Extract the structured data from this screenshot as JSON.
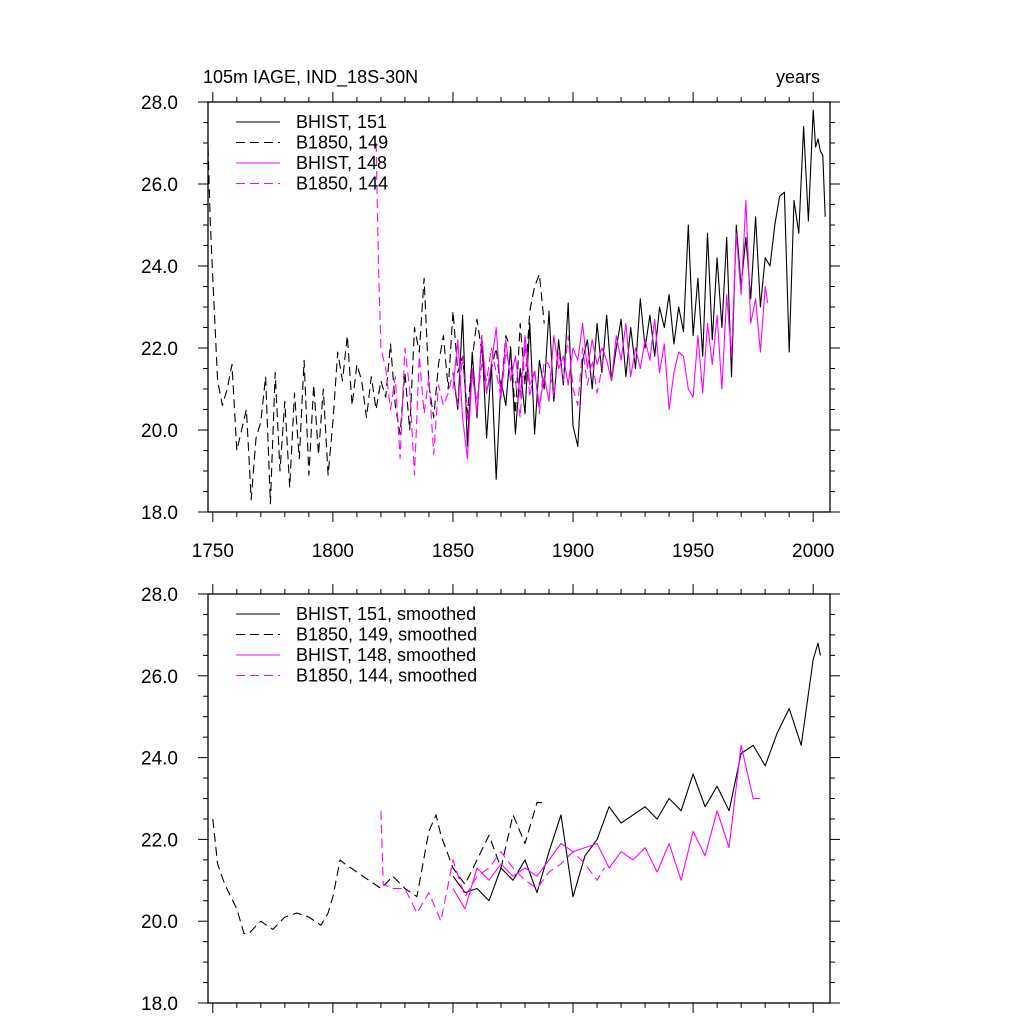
{
  "figure": {
    "title_left": "105m IAGE, IND_18S-30N",
    "title_right": "years"
  },
  "colors": {
    "black": "#000000",
    "magenta": "#ff00ff"
  },
  "chart_data": [
    {
      "type": "line",
      "title": "105m IAGE, IND_18S-30N",
      "subtitle_right": "years",
      "xlabel": "",
      "ylabel": "",
      "xlim": [
        1748,
        2007
      ],
      "ylim": [
        18.0,
        28.0
      ],
      "xticks": [
        1750,
        1800,
        1850,
        1900,
        1950,
        2000
      ],
      "yticks": [
        18.0,
        20.0,
        22.0,
        24.0,
        26.0,
        28.0
      ],
      "ytick_labels": [
        "18.0",
        "20.0",
        "22.0",
        "24.0",
        "26.0",
        "28.0"
      ],
      "legend_loc": "top-left",
      "series": [
        {
          "name": "BHIST, 151",
          "color": "#000000",
          "style": "solid",
          "x": [
            1850,
            1852,
            1854,
            1856,
            1858,
            1860,
            1862,
            1864,
            1866,
            1868,
            1870,
            1872,
            1874,
            1876,
            1878,
            1880,
            1882,
            1884,
            1886,
            1888,
            1890,
            1892,
            1894,
            1896,
            1898,
            1900,
            1902,
            1904,
            1906,
            1908,
            1910,
            1912,
            1914,
            1916,
            1918,
            1920,
            1922,
            1924,
            1926,
            1928,
            1930,
            1932,
            1934,
            1936,
            1938,
            1940,
            1942,
            1944,
            1946,
            1948,
            1950,
            1952,
            1954,
            1956,
            1958,
            1960,
            1962,
            1964,
            1966,
            1968,
            1970,
            1972,
            1974,
            1976,
            1978,
            1980,
            1982,
            1984,
            1986,
            1988,
            1990,
            1992,
            1994,
            1996,
            1998,
            2000,
            2001,
            2002,
            2003,
            2004,
            2005
          ],
          "values": [
            21.4,
            20.5,
            22.8,
            19.6,
            21.9,
            20.3,
            22.3,
            19.8,
            21.6,
            18.8,
            21.2,
            20.6,
            22.0,
            19.9,
            21.5,
            20.4,
            22.6,
            19.9,
            21.7,
            21.0,
            22.9,
            20.7,
            22.2,
            21.1,
            23.1,
            20.1,
            19.6,
            21.7,
            22.2,
            21.0,
            22.6,
            21.4,
            22.8,
            21.2,
            22.0,
            22.7,
            21.3,
            22.5,
            21.5,
            23.2,
            22.0,
            22.8,
            21.8,
            23.0,
            22.5,
            23.3,
            22.1,
            23.0,
            22.4,
            25.0,
            22.3,
            23.7,
            21.8,
            24.8,
            22.2,
            24.2,
            22.5,
            24.7,
            21.3,
            25.0,
            23.5,
            24.7,
            23.2,
            25.2,
            23.0,
            24.2,
            24.0,
            25.0,
            25.7,
            25.8,
            21.9,
            25.6,
            24.8,
            27.4,
            25.1,
            27.8,
            26.9,
            27.1,
            26.8,
            26.7,
            25.2
          ]
        },
        {
          "name": "B1850, 149",
          "color": "#000000",
          "style": "dashed",
          "x": [
            1748,
            1749,
            1750,
            1752,
            1754,
            1756,
            1758,
            1760,
            1762,
            1764,
            1766,
            1768,
            1770,
            1772,
            1774,
            1776,
            1778,
            1780,
            1782,
            1784,
            1786,
            1788,
            1790,
            1792,
            1794,
            1796,
            1798,
            1800,
            1802,
            1804,
            1806,
            1808,
            1810,
            1812,
            1814,
            1816,
            1818,
            1820,
            1822,
            1824,
            1826,
            1828,
            1830,
            1832,
            1834,
            1836,
            1838,
            1840,
            1842,
            1844,
            1846,
            1848,
            1850,
            1852,
            1854,
            1856,
            1858,
            1860,
            1862,
            1864,
            1866,
            1868,
            1870,
            1872,
            1874,
            1876,
            1878,
            1880,
            1882,
            1884,
            1886,
            1888
          ],
          "values": [
            26.9,
            25.0,
            23.7,
            21.2,
            20.6,
            21.0,
            21.6,
            19.5,
            20.0,
            20.5,
            18.3,
            19.8,
            20.2,
            21.3,
            18.2,
            21.4,
            19.0,
            20.7,
            18.6,
            20.9,
            19.3,
            21.7,
            18.9,
            21.1,
            19.4,
            21.0,
            18.9,
            20.2,
            21.9,
            21.2,
            22.3,
            20.6,
            21.6,
            21.2,
            20.3,
            21.3,
            20.5,
            21.2,
            20.8,
            22.1,
            20.6,
            19.9,
            21.4,
            20.0,
            22.5,
            21.9,
            23.7,
            21.1,
            20.3,
            21.6,
            22.3,
            21.0,
            22.9,
            21.4,
            21.8,
            20.4,
            21.7,
            22.7,
            21.9,
            20.9,
            21.5,
            22.0,
            20.9,
            22.3,
            22.0,
            20.4,
            22.6,
            21.1,
            22.9,
            23.5,
            23.8,
            22.6
          ]
        },
        {
          "name": "BHIST, 148",
          "color": "#ff00ff",
          "style": "solid",
          "x": [
            1850,
            1852,
            1854,
            1856,
            1858,
            1860,
            1862,
            1864,
            1866,
            1868,
            1870,
            1872,
            1874,
            1876,
            1878,
            1880,
            1882,
            1884,
            1886,
            1888,
            1890,
            1892,
            1894,
            1896,
            1898,
            1900,
            1902,
            1904,
            1906,
            1908,
            1910,
            1912,
            1914,
            1916,
            1918,
            1920,
            1922,
            1924,
            1926,
            1928,
            1930,
            1932,
            1934,
            1936,
            1938,
            1940,
            1942,
            1944,
            1946,
            1948,
            1950,
            1952,
            1954,
            1956,
            1958,
            1960,
            1962,
            1964,
            1966,
            1968,
            1970,
            1972,
            1974,
            1976,
            1978,
            1980,
            1981
          ],
          "values": [
            21.0,
            22.2,
            20.3,
            19.3,
            21.5,
            20.4,
            22.3,
            20.9,
            21.6,
            22.5,
            20.8,
            22.2,
            21.2,
            21.8,
            20.8,
            22.3,
            21.1,
            21.4,
            20.6,
            21.3,
            20.7,
            22.3,
            21.5,
            21.8,
            21.1,
            22.0,
            21.7,
            22.6,
            21.5,
            22.2,
            21.6,
            22.0,
            21.7,
            21.2,
            22.3,
            21.7,
            22.6,
            21.3,
            22.0,
            21.5,
            22.2,
            21.7,
            22.7,
            21.4,
            22.1,
            20.5,
            21.4,
            21.9,
            21.8,
            21.0,
            20.8,
            22.3,
            20.9,
            22.6,
            21.6,
            22.8,
            21.0,
            23.3,
            21.8,
            24.8,
            23.3,
            25.6,
            22.6,
            23.2,
            21.9,
            23.5,
            23.1
          ]
        },
        {
          "name": "B1850, 144",
          "color": "#ff00ff",
          "style": "dashed",
          "x": [
            1818,
            1819,
            1820,
            1822,
            1824,
            1826,
            1828,
            1830,
            1832,
            1834,
            1836,
            1838,
            1840,
            1842,
            1844,
            1846,
            1848,
            1850,
            1852,
            1854,
            1856,
            1858,
            1860,
            1862,
            1864,
            1866,
            1868,
            1870,
            1872,
            1874,
            1876,
            1878,
            1880,
            1882,
            1884,
            1886,
            1888,
            1890,
            1892,
            1894,
            1896,
            1898,
            1900,
            1902,
            1904,
            1906,
            1908,
            1910,
            1912,
            1913
          ],
          "values": [
            27.0,
            24.0,
            22.0,
            21.5,
            20.5,
            21.3,
            19.3,
            22.0,
            21.0,
            18.9,
            21.8,
            20.4,
            21.3,
            19.4,
            21.1,
            20.6,
            20.9,
            21.4,
            20.6,
            21.8,
            20.2,
            21.3,
            20.7,
            21.6,
            21.2,
            22.0,
            21.4,
            20.8,
            21.9,
            21.5,
            21.2,
            20.3,
            22.1,
            20.8,
            21.5,
            20.4,
            21.7,
            21.6,
            20.8,
            21.9,
            21.2,
            22.3,
            21.0,
            20.6,
            22.0,
            21.1,
            21.7,
            20.9,
            21.5,
            21.9
          ]
        }
      ]
    },
    {
      "type": "line",
      "title": "",
      "xlabel": "",
      "ylabel": "",
      "xlim": [
        1748,
        2007
      ],
      "ylim": [
        18.0,
        28.0
      ],
      "xticks": [
        1750,
        1800,
        1850,
        1900,
        1950,
        2000
      ],
      "yticks": [
        18.0,
        20.0,
        22.0,
        24.0,
        26.0,
        28.0
      ],
      "ytick_labels": [
        "18.0",
        "20.0",
        "22.0",
        "24.0",
        "26.0",
        "28.0"
      ],
      "legend_loc": "top-left",
      "series": [
        {
          "name": "BHIST, 151, smoothed",
          "color": "#000000",
          "style": "solid",
          "x": [
            1850,
            1855,
            1860,
            1865,
            1870,
            1875,
            1880,
            1885,
            1890,
            1895,
            1900,
            1905,
            1910,
            1915,
            1920,
            1925,
            1930,
            1935,
            1940,
            1945,
            1950,
            1955,
            1960,
            1965,
            1970,
            1975,
            1980,
            1985,
            1990,
            1995,
            2000,
            2002,
            2003
          ],
          "values": [
            21.1,
            20.7,
            20.8,
            20.5,
            21.3,
            21.0,
            21.5,
            20.7,
            21.7,
            22.6,
            20.6,
            21.6,
            22.0,
            22.8,
            22.4,
            22.6,
            22.8,
            22.5,
            23.0,
            22.7,
            23.6,
            22.8,
            23.3,
            22.7,
            24.1,
            24.3,
            23.8,
            24.6,
            25.2,
            24.3,
            26.4,
            26.8,
            26.5
          ]
        },
        {
          "name": "B1850, 149, smoothed",
          "color": "#000000",
          "style": "dashed",
          "x": [
            1750,
            1752,
            1755,
            1760,
            1763,
            1765,
            1770,
            1775,
            1780,
            1785,
            1790,
            1795,
            1798,
            1800,
            1803,
            1805,
            1810,
            1815,
            1820,
            1825,
            1830,
            1835,
            1840,
            1843,
            1845,
            1850,
            1855,
            1860,
            1865,
            1870,
            1875,
            1880,
            1885,
            1887
          ],
          "values": [
            22.5,
            21.4,
            20.9,
            20.3,
            19.7,
            19.7,
            20.0,
            19.8,
            20.1,
            20.2,
            20.1,
            19.9,
            20.2,
            20.6,
            21.5,
            21.4,
            21.2,
            21.0,
            20.8,
            21.1,
            20.8,
            20.6,
            22.2,
            22.6,
            22.1,
            21.3,
            20.9,
            21.5,
            22.1,
            21.3,
            22.6,
            21.9,
            22.9,
            22.9
          ]
        },
        {
          "name": "BHIST, 148, smoothed",
          "color": "#ff00ff",
          "style": "solid",
          "x": [
            1850,
            1855,
            1860,
            1865,
            1870,
            1875,
            1880,
            1885,
            1890,
            1895,
            1900,
            1905,
            1910,
            1915,
            1920,
            1925,
            1930,
            1935,
            1940,
            1945,
            1950,
            1955,
            1960,
            1965,
            1970,
            1975,
            1978
          ],
          "values": [
            20.8,
            20.3,
            21.3,
            21.0,
            21.4,
            21.1,
            21.3,
            21.1,
            21.5,
            21.9,
            21.7,
            21.8,
            21.9,
            21.3,
            21.7,
            21.5,
            21.8,
            21.2,
            21.9,
            21.0,
            22.2,
            21.6,
            22.7,
            21.8,
            24.3,
            23.0,
            23.0
          ]
        },
        {
          "name": "B1850, 144, smoothed",
          "color": "#ff00ff",
          "style": "dashed",
          "x": [
            1820,
            1821,
            1825,
            1830,
            1835,
            1840,
            1845,
            1850,
            1855,
            1860,
            1865,
            1870,
            1875,
            1880,
            1885,
            1890,
            1895,
            1900,
            1905,
            1910,
            1913
          ],
          "values": [
            22.7,
            20.9,
            20.8,
            20.8,
            20.2,
            20.7,
            20.0,
            21.5,
            20.6,
            21.1,
            21.3,
            21.7,
            21.3,
            21.0,
            20.8,
            21.2,
            21.4,
            21.7,
            21.4,
            21.0,
            21.3
          ]
        }
      ]
    }
  ]
}
